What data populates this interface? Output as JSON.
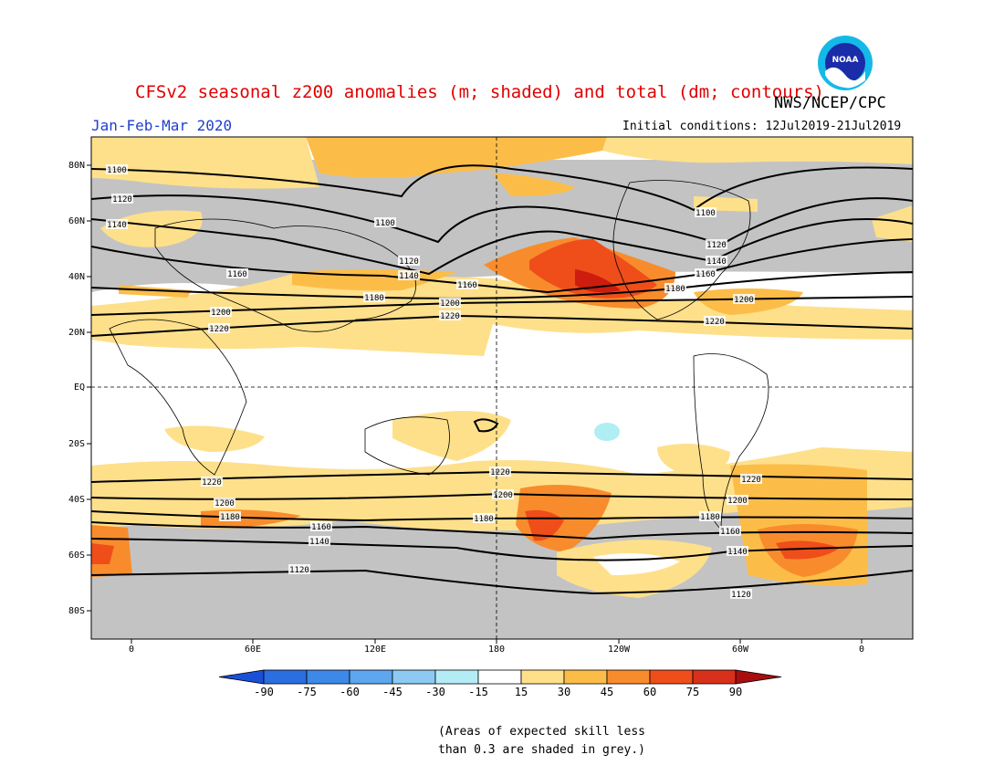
{
  "header": {
    "title": "CFSv2 seasonal z200 anomalies (m; shaded) and total (dm; contours)",
    "agency": "NWS/NCEP/CPC",
    "period": "Jan-Feb-Mar 2020",
    "initial_conditions": "Initial conditions: 12Jul2019-21Jul2019"
  },
  "logo": {
    "text": "NOAA",
    "icon": "noaa-logo-icon"
  },
  "map": {
    "lat_labels": [
      "80N",
      "60N",
      "40N",
      "20N",
      "EQ",
      "20S",
      "40S",
      "60S",
      "80S"
    ],
    "lon_labels": [
      "0",
      "60E",
      "120E",
      "180",
      "120W",
      "60W",
      "0"
    ],
    "contours": [
      {
        "level": "1100",
        "labels": [
          "1100",
          "1100",
          "1100"
        ]
      },
      {
        "level": "1120",
        "labels": [
          "1120",
          "1120",
          "1120"
        ]
      },
      {
        "level": "1140",
        "labels": [
          "1140",
          "1140",
          "1140"
        ]
      },
      {
        "level": "1160",
        "labels": [
          "1160",
          "1160",
          "1160"
        ]
      },
      {
        "level": "1180",
        "labels": [
          "1180",
          "1180"
        ]
      },
      {
        "level": "1200",
        "labels": [
          "1200",
          "1200",
          "1200"
        ]
      },
      {
        "level": "1220",
        "labels": [
          "1220",
          "1220",
          "1220"
        ]
      },
      {
        "level": "1220",
        "labels": [
          "1220",
          "1220",
          "1220"
        ]
      },
      {
        "level": "1200",
        "labels": [
          "1200",
          "1200",
          "1200"
        ]
      },
      {
        "level": "1180",
        "labels": [
          "1180",
          "1180",
          "1180"
        ]
      },
      {
        "level": "1160",
        "labels": [
          "1160",
          "1160"
        ]
      },
      {
        "level": "1140",
        "labels": [
          "1140",
          "1140"
        ]
      },
      {
        "level": "1120",
        "labels": [
          "1120",
          "1120"
        ]
      }
    ],
    "colors": {
      "skill_grey": "#c3c3c3",
      "c15_30": "#fee08b",
      "c30_45": "#fcbd48",
      "c45_60": "#f88c2c",
      "c60_75": "#ef4e1a",
      "c75_90": "#cc1d0e",
      "neg_15_30": "#b0eef4"
    }
  },
  "colorbar": {
    "labels": [
      "-90",
      "-75",
      "-60",
      "-45",
      "-30",
      "-15",
      "15",
      "30",
      "45",
      "60",
      "75",
      "90"
    ],
    "colors": [
      "#1a4fd8",
      "#2a6ee0",
      "#3c89e8",
      "#5ea6ee",
      "#8ccaf4",
      "#b4ecf6",
      "#ffffff",
      "#fee08b",
      "#fcbd48",
      "#f88c2c",
      "#ef4e1a",
      "#d8301a",
      "#a80e0e"
    ]
  },
  "footnote": {
    "line1": "(Areas of expected skill less",
    "line2": "than 0.3 are shaded in grey.)"
  }
}
